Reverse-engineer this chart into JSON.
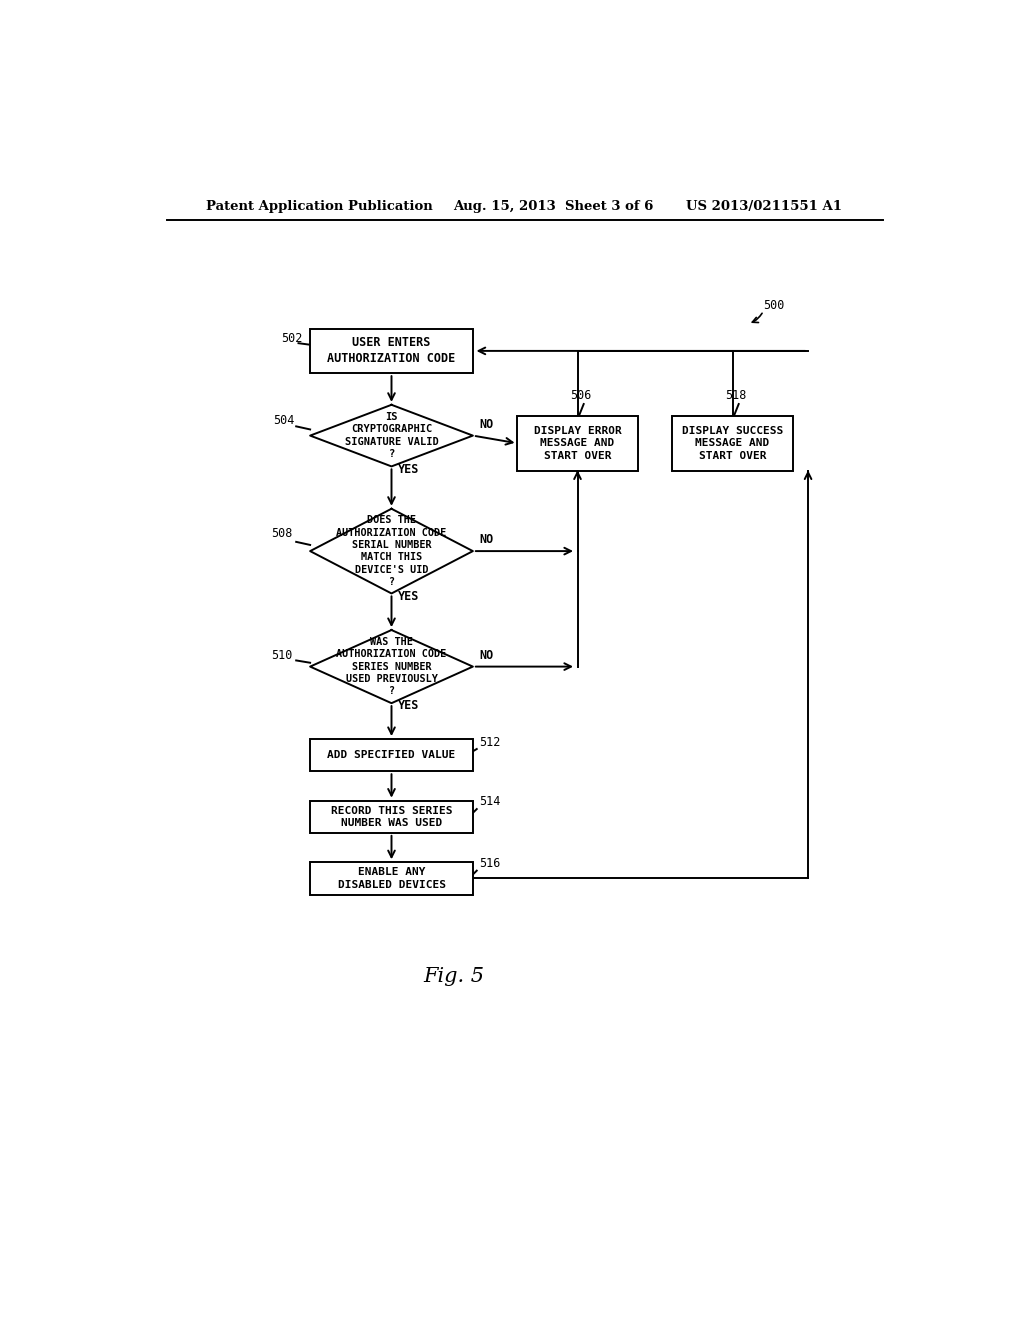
{
  "bg_color": "#ffffff",
  "header_left": "Patent Application Publication",
  "header_mid": "Aug. 15, 2013  Sheet 3 of 6",
  "header_right": "US 2013/0211551 A1",
  "fig_label": "Fig. 5",
  "diagram_label": "500"
}
